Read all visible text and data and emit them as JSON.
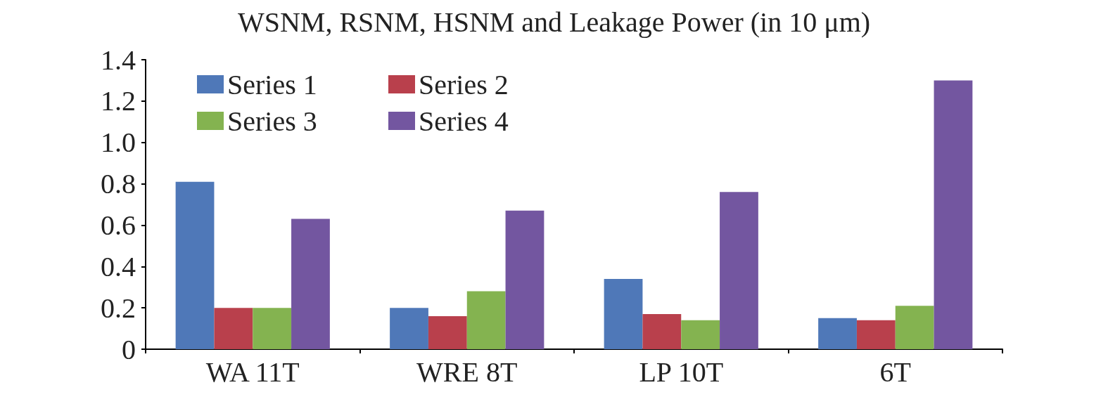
{
  "chart_data": {
    "type": "bar",
    "title": "WSNM, RSNM, HSNM and Leakage Power (in 10 μm)",
    "categories": [
      "WA 11T",
      "WRE 8T",
      "LP 10T",
      "6T"
    ],
    "series": [
      {
        "name": "Series 1",
        "color": "#4f78b8",
        "values": [
          0.81,
          0.2,
          0.34,
          0.15
        ]
      },
      {
        "name": "Series 2",
        "color": "#b9404c",
        "values": [
          0.2,
          0.16,
          0.17,
          0.14
        ]
      },
      {
        "name": "Series 3",
        "color": "#84b350",
        "values": [
          0.2,
          0.28,
          0.14,
          0.21
        ]
      },
      {
        "name": "Series 4",
        "color": "#7356a0",
        "values": [
          0.63,
          0.67,
          0.76,
          1.3
        ]
      }
    ],
    "ylim": [
      0,
      1.4
    ],
    "yticks": [
      0,
      0.2,
      0.4,
      0.6,
      0.8,
      {
        "value": 1,
        "label": "1.0"
      },
      1.2,
      1.4
    ],
    "grid": false,
    "legend": "top left"
  }
}
